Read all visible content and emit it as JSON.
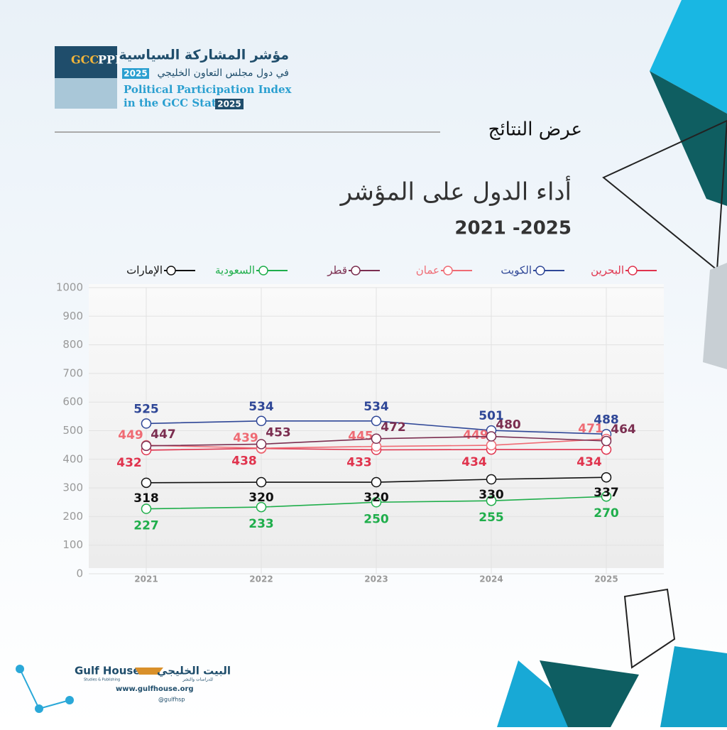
{
  "header": {
    "logo_abbr": "GCC",
    "logo_abbr2": "PPI",
    "title_ar": "مؤشر المشاركة السياسية",
    "subtitle_ar": "في دول مجلس التعاون الخليجي",
    "year_ar": "2025",
    "title_en": "Political Participation Index",
    "subtitle_en": "in the GCC States",
    "year_en": "2025",
    "section": "عرض النتائج"
  },
  "chart_data": {
    "type": "line",
    "title": "أداء الدول على المؤشر",
    "subtitle": "2021 -2025",
    "categories": [
      "2021",
      "2022",
      "2023",
      "2024",
      "2025"
    ],
    "series": [
      {
        "name": "البحرين",
        "color": "#e0334d",
        "values": [
          432,
          438,
          433,
          434,
          434
        ]
      },
      {
        "name": "الكويت",
        "color": "#2f4797",
        "values": [
          525,
          534,
          534,
          501,
          488
        ]
      },
      {
        "name": "عمان",
        "color": "#ef6b74",
        "values": [
          449,
          439,
          445,
          449,
          471
        ]
      },
      {
        "name": "قطر",
        "color": "#7b2e50",
        "values": [
          447,
          453,
          472,
          480,
          464
        ]
      },
      {
        "name": "السعودية",
        "color": "#1fae4b",
        "values": [
          227,
          233,
          250,
          255,
          270
        ]
      },
      {
        "name": "الإمارات",
        "color": "#111111",
        "values": [
          318,
          320,
          320,
          330,
          337
        ]
      }
    ],
    "ylim": [
      0,
      1000
    ],
    "yticks": [
      0,
      100,
      200,
      300,
      400,
      500,
      600,
      700,
      800,
      900,
      1000
    ],
    "grid": true
  },
  "footer": {
    "brand_en": "Gulf House",
    "brand_sub_en": "Studies & Publishing",
    "brand_ar": "البيت الخليجي",
    "brand_sub_ar": "للدراسات والنشر",
    "url": "www.gulfhouse.org",
    "handle": "@gulfhsp"
  }
}
